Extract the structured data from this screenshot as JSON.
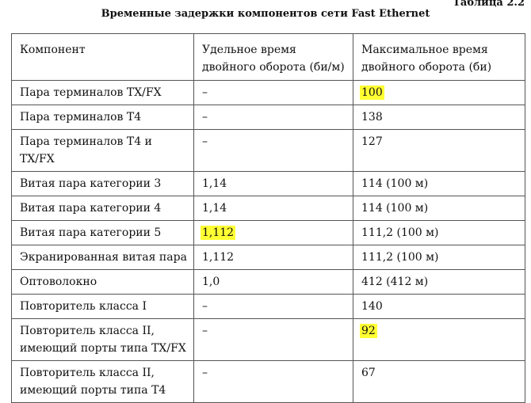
{
  "table_number": "Таблица 2.2",
  "title": "Временные задержки компонентов сети Fast Ethernet",
  "headers": [
    "Компонент",
    "Удельное время двойного оборота (би/м)",
    "Максимальное время двойного оборота (би)"
  ],
  "rows": [
    {
      "component": "Пара терминалов TX/FX",
      "specific": "–",
      "max": "100",
      "highlight": "max"
    },
    {
      "component": "Пара терминалов T4",
      "specific": "–",
      "max": "138"
    },
    {
      "component": "Пара терминалов T4 и TX/FX",
      "specific": "–",
      "max": "127"
    },
    {
      "component": "Витая пара категории 3",
      "specific": "1,14",
      "max": "114 (100 м)"
    },
    {
      "component": "Витая пара категории 4",
      "specific": "1,14",
      "max": "114 (100 м)"
    },
    {
      "component": "Витая пара категории 5",
      "specific": "1,112",
      "max": "111,2 (100 м)",
      "highlight": "specific"
    },
    {
      "component": "Экранированная витая пара",
      "specific": "1,112",
      "max": "111,2 (100 м)"
    },
    {
      "component": "Оптоволокно",
      "specific": "1,0",
      "max": "412 (412 м)"
    },
    {
      "component": "Повторитель класса I",
      "specific": "–",
      "max": "140"
    },
    {
      "component": "Повторитель класса II, имеющий порты типа TX/FX",
      "specific": "–",
      "max": "92",
      "highlight": "max"
    },
    {
      "component": "Повторитель класса II, имеющий порты типа T4",
      "specific": "–",
      "max": "67"
    }
  ],
  "highlight_color": "#ffff33"
}
